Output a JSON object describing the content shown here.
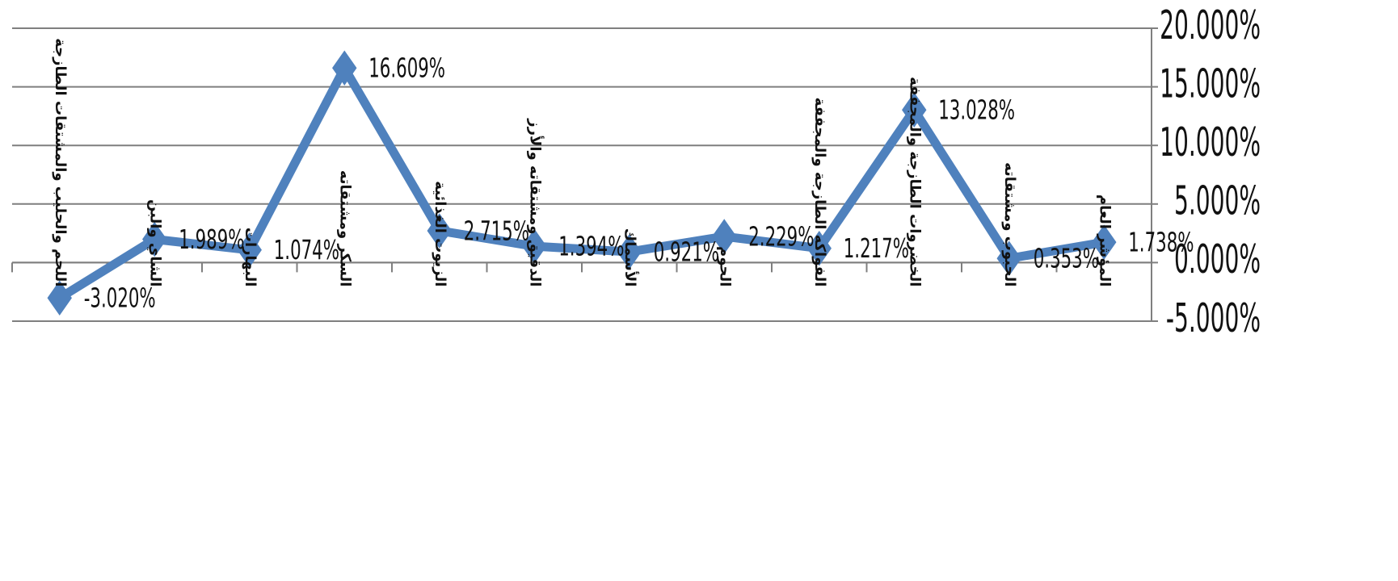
{
  "chart_data": {
    "type": "line",
    "categories": [
      "اللحم والحليب والمشتقات الطازجة",
      "الشاي والبن",
      "البهارات",
      "السكر ومشتقاته",
      "الزيوت الغذائية",
      "الدقيق ومشتقاته والأرز",
      "الأسماك",
      "الحوم",
      "الفواكه الطازجة والمجففة",
      "الخضروات الطازجة والمجففة",
      "الحبوب ومشتقاته",
      "المؤشر العام"
    ],
    "series": [
      {
        "values": [
          -3.02,
          1.989,
          1.074,
          16.609,
          2.715,
          1.394,
          0.921,
          2.229,
          1.217,
          13.028,
          0.353,
          1.738
        ],
        "labels": [
          "-3.020%",
          "1.989%",
          "1.074%",
          "16.609%",
          "2.715%",
          "1.394%",
          "0.921%",
          "2.229%",
          "1.217%",
          "13.028%",
          "0.353%",
          "1.738%"
        ],
        "color": "#4f81bd"
      }
    ],
    "ylim": [
      -5,
      20
    ],
    "yticks": [
      -5,
      0,
      5,
      10,
      15,
      20
    ],
    "ytick_labels": [
      "-5.000%",
      "0.000%",
      "5.000%",
      "10.000%",
      "15.000%",
      "20.000%"
    ],
    "y_axis_side": "right",
    "grid": true,
    "title": "",
    "xlabel": "",
    "ylabel": ""
  }
}
